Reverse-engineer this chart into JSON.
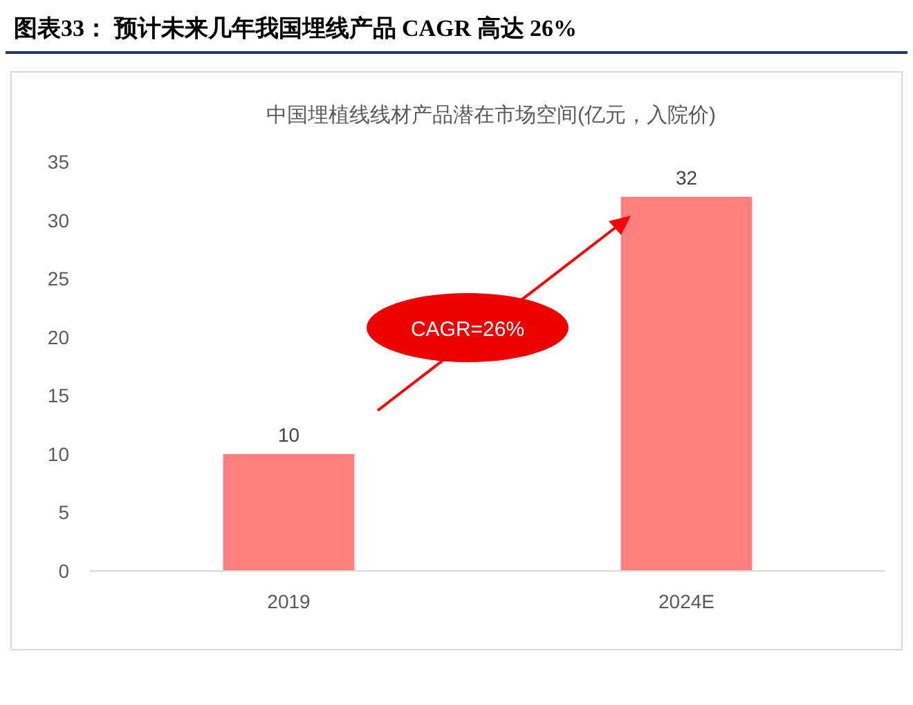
{
  "chart_data": {
    "type": "bar",
    "title": "图表33： 预计未来几年我国埋线产品 CAGR 高达 26%",
    "subtitle": "中国埋植线线材产品潜在市场空间(亿元，入院价)",
    "categories": [
      "2019",
      "2024E"
    ],
    "values": [
      10,
      32
    ],
    "color": "#ff7f7f",
    "ylim": [
      0,
      35
    ],
    "yticks": [
      0,
      5,
      10,
      15,
      20,
      25,
      30,
      35
    ],
    "data_labels": true,
    "annotations": [
      "CAGR=26%"
    ]
  }
}
